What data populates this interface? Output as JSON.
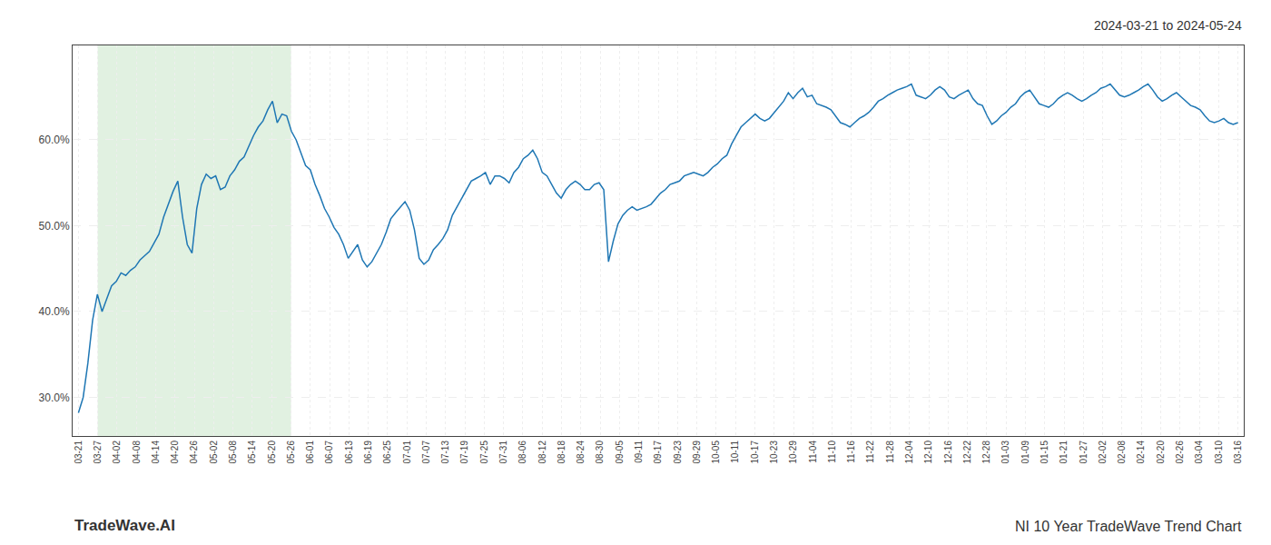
{
  "chart_data": {
    "type": "line",
    "title": "NI 10 Year TradeWave Trend Chart",
    "subtitle": "2024-03-21 to 2024-05-24",
    "annotations": [
      "TradeWave.AI"
    ],
    "color": "#1f77b4",
    "grid": true,
    "shading": {
      "from": 1,
      "to": 11,
      "color": "#c8e6c9"
    },
    "xlim": [
      -0.3,
      60.3
    ],
    "xticks": [
      {
        "value": 0,
        "label": "03-21"
      },
      {
        "value": 1,
        "label": "03-27"
      },
      {
        "value": 2,
        "label": "04-02"
      },
      {
        "value": 3,
        "label": "04-08"
      },
      {
        "value": 4,
        "label": "04-14"
      },
      {
        "value": 5,
        "label": "04-20"
      },
      {
        "value": 6,
        "label": "04-26"
      },
      {
        "value": 7,
        "label": "05-02"
      },
      {
        "value": 8,
        "label": "05-08"
      },
      {
        "value": 9,
        "label": "05-14"
      },
      {
        "value": 10,
        "label": "05-20"
      },
      {
        "value": 11,
        "label": "05-26"
      },
      {
        "value": 12,
        "label": "06-01"
      },
      {
        "value": 13,
        "label": "06-07"
      },
      {
        "value": 14,
        "label": "06-13"
      },
      {
        "value": 15,
        "label": "06-19"
      },
      {
        "value": 16,
        "label": "06-25"
      },
      {
        "value": 17,
        "label": "07-01"
      },
      {
        "value": 18,
        "label": "07-07"
      },
      {
        "value": 19,
        "label": "07-13"
      },
      {
        "value": 20,
        "label": "07-19"
      },
      {
        "value": 21,
        "label": "07-25"
      },
      {
        "value": 22,
        "label": "07-31"
      },
      {
        "value": 23,
        "label": "08-06"
      },
      {
        "value": 24,
        "label": "08-12"
      },
      {
        "value": 25,
        "label": "08-18"
      },
      {
        "value": 26,
        "label": "08-24"
      },
      {
        "value": 27,
        "label": "08-30"
      },
      {
        "value": 28,
        "label": "09-05"
      },
      {
        "value": 29,
        "label": "09-11"
      },
      {
        "value": 30,
        "label": "09-17"
      },
      {
        "value": 31,
        "label": "09-23"
      },
      {
        "value": 32,
        "label": "09-29"
      },
      {
        "value": 33,
        "label": "10-05"
      },
      {
        "value": 34,
        "label": "10-11"
      },
      {
        "value": 35,
        "label": "10-17"
      },
      {
        "value": 36,
        "label": "10-23"
      },
      {
        "value": 37,
        "label": "10-29"
      },
      {
        "value": 38,
        "label": "11-04"
      },
      {
        "value": 39,
        "label": "11-10"
      },
      {
        "value": 40,
        "label": "11-16"
      },
      {
        "value": 41,
        "label": "11-22"
      },
      {
        "value": 42,
        "label": "11-28"
      },
      {
        "value": 43,
        "label": "12-04"
      },
      {
        "value": 44,
        "label": "12-10"
      },
      {
        "value": 45,
        "label": "12-16"
      },
      {
        "value": 46,
        "label": "12-22"
      },
      {
        "value": 47,
        "label": "12-28"
      },
      {
        "value": 48,
        "label": "01-03"
      },
      {
        "value": 49,
        "label": "01-09"
      },
      {
        "value": 50,
        "label": "01-15"
      },
      {
        "value": 51,
        "label": "01-21"
      },
      {
        "value": 52,
        "label": "01-27"
      },
      {
        "value": 53,
        "label": "02-02"
      },
      {
        "value": 54,
        "label": "02-08"
      },
      {
        "value": 55,
        "label": "02-14"
      },
      {
        "value": 56,
        "label": "02-20"
      },
      {
        "value": 57,
        "label": "02-26"
      },
      {
        "value": 58,
        "label": "03-04"
      },
      {
        "value": 59,
        "label": "03-10"
      },
      {
        "value": 60,
        "label": "03-16"
      }
    ],
    "ylim": [
      0.255,
      0.71
    ],
    "yticks": [
      {
        "value": 0.3,
        "label": "30.0%"
      },
      {
        "value": 0.4,
        "label": "40.0%"
      },
      {
        "value": 0.5,
        "label": "50.0%"
      },
      {
        "value": 0.6,
        "label": "60.0%"
      }
    ],
    "x": [
      0,
      0.2449,
      0.4898,
      0.7347,
      0.9796,
      1.2245,
      1.4694,
      1.7143,
      1.9592,
      2.2041,
      2.449,
      2.6939,
      2.9388,
      3.1837,
      3.4286,
      3.6735,
      3.9184,
      4.1633,
      4.4082,
      4.6531,
      4.898,
      5.1429,
      5.3878,
      5.6327,
      5.8776,
      6.1224,
      6.3673,
      6.6122,
      6.8571,
      7.102,
      7.3469,
      7.5918,
      7.8367,
      8.0816,
      8.3265,
      8.5714,
      8.8163,
      9.0612,
      9.3061,
      9.551,
      9.7959,
      10.0408,
      10.2857,
      10.5306,
      10.7755,
      11.0204,
      11.2653,
      11.5102,
      11.7551,
      12,
      12.2449,
      12.4898,
      12.7347,
      12.9796,
      13.2245,
      13.4694,
      13.7143,
      13.9592,
      14.2041,
      14.449,
      14.6939,
      14.9388,
      15.1837,
      15.4286,
      15.6735,
      15.9184,
      16.1633,
      16.4082,
      16.6531,
      16.898,
      17.1429,
      17.3878,
      17.6327,
      17.8776,
      18.1224,
      18.3673,
      18.6122,
      18.8571,
      19.102,
      19.3469,
      19.5918,
      19.8367,
      20.0816,
      20.3265,
      20.5714,
      20.8163,
      21.0612,
      21.3061,
      21.551,
      21.7959,
      22.0408,
      22.2857,
      22.5306,
      22.7755,
      23.0204,
      23.2653,
      23.5102,
      23.7551,
      24,
      24.2449,
      24.4898,
      24.7347,
      24.9796,
      25.2245,
      25.4694,
      25.7143,
      25.9592,
      26.2041,
      26.449,
      26.6939,
      26.9388,
      27.1837,
      27.4286,
      27.6735,
      27.9184,
      28.1633,
      28.4082,
      28.6531,
      28.898,
      29.1429,
      29.3878,
      29.6327,
      29.8776,
      30.1224,
      30.3673,
      30.6122,
      30.8571,
      31.102,
      31.3469,
      31.5918,
      31.8367,
      32.0816,
      32.3265,
      32.5714,
      32.8163,
      33.0612,
      33.3061,
      33.551,
      33.7959,
      34.0408,
      34.2857,
      34.5306,
      34.7755,
      35.0204,
      35.2653,
      35.5102,
      35.7551,
      36,
      36.2449,
      36.4898,
      36.7347,
      36.9796,
      37.2245,
      37.4694,
      37.7143,
      37.9592,
      38.2041,
      38.449,
      38.6939,
      38.9388,
      39.1837,
      39.4286,
      39.6735,
      39.9184,
      40.1633,
      40.4082,
      40.6531,
      40.898,
      41.1429,
      41.3878,
      41.6327,
      41.8776,
      42.1224,
      42.3673,
      42.6122,
      42.8571,
      43.102,
      43.3469,
      43.5918,
      43.8367,
      44.0816,
      44.3265,
      44.5714,
      44.8163,
      45.0612,
      45.3061,
      45.551,
      45.7959,
      46.0408,
      46.2857,
      46.5306,
      46.7755,
      47.0204,
      47.2653,
      47.5102,
      47.7551,
      48,
      48.2449,
      48.4898,
      48.7347,
      48.9796,
      49.2245,
      49.4694,
      49.7143,
      49.9592,
      50.2041,
      50.449,
      50.6939,
      50.9388,
      51.1837,
      51.4286,
      51.6735,
      51.9184,
      52.1633,
      52.4082,
      52.6531,
      52.898,
      53.1429,
      53.3878,
      53.6327,
      53.8776,
      54.1224,
      54.3673,
      54.6122,
      54.8571,
      55.102,
      55.3469,
      55.5918,
      55.8367,
      56.0816,
      56.3265,
      56.5714,
      56.8163,
      57.0612,
      57.3061,
      57.551,
      57.7959,
      58.0408,
      58.2857,
      58.5306,
      58.7755,
      59.0204,
      59.2653,
      59.5102,
      59.7551,
      60
    ],
    "values": [
      0.282,
      0.3,
      0.34,
      0.39,
      0.42,
      0.4,
      0.415,
      0.43,
      0.435,
      0.445,
      0.442,
      0.448,
      0.452,
      0.46,
      0.465,
      0.47,
      0.48,
      0.49,
      0.51,
      0.525,
      0.54,
      0.552,
      0.51,
      0.478,
      0.468,
      0.52,
      0.548,
      0.56,
      0.555,
      0.558,
      0.542,
      0.545,
      0.558,
      0.565,
      0.575,
      0.58,
      0.592,
      0.605,
      0.615,
      0.622,
      0.635,
      0.645,
      0.62,
      0.63,
      0.628,
      0.61,
      0.6,
      0.585,
      0.57,
      0.565,
      0.548,
      0.535,
      0.52,
      0.51,
      0.498,
      0.49,
      0.478,
      0.462,
      0.47,
      0.478,
      0.46,
      0.452,
      0.458,
      0.468,
      0.478,
      0.492,
      0.508,
      0.515,
      0.522,
      0.528,
      0.518,
      0.495,
      0.462,
      0.455,
      0.46,
      0.472,
      0.478,
      0.485,
      0.495,
      0.512,
      0.522,
      0.532,
      0.542,
      0.552,
      0.555,
      0.558,
      0.562,
      0.548,
      0.558,
      0.558,
      0.555,
      0.55,
      0.562,
      0.568,
      0.578,
      0.582,
      0.588,
      0.578,
      0.562,
      0.558,
      0.548,
      0.538,
      0.532,
      0.542,
      0.548,
      0.552,
      0.548,
      0.542,
      0.542,
      0.548,
      0.55,
      0.542,
      0.458,
      0.482,
      0.502,
      0.512,
      0.518,
      0.522,
      0.518,
      0.52,
      0.522,
      0.525,
      0.532,
      0.538,
      0.542,
      0.548,
      0.55,
      0.552,
      0.558,
      0.56,
      0.562,
      0.56,
      0.558,
      0.562,
      0.568,
      0.572,
      0.578,
      0.582,
      0.595,
      0.605,
      0.615,
      0.62,
      0.625,
      0.63,
      0.625,
      0.622,
      0.625,
      0.632,
      0.638,
      0.645,
      0.655,
      0.648,
      0.655,
      0.66,
      0.65,
      0.652,
      0.642,
      0.64,
      0.638,
      0.635,
      0.628,
      0.62,
      0.618,
      0.615,
      0.62,
      0.625,
      0.628,
      0.632,
      0.638,
      0.645,
      0.648,
      0.652,
      0.655,
      0.658,
      0.66,
      0.662,
      0.665,
      0.652,
      0.65,
      0.648,
      0.652,
      0.658,
      0.662,
      0.658,
      0.65,
      0.648,
      0.652,
      0.655,
      0.658,
      0.648,
      0.642,
      0.64,
      0.628,
      0.618,
      0.622,
      0.628,
      0.632,
      0.638,
      0.642,
      0.65,
      0.655,
      0.658,
      0.65,
      0.642,
      0.64,
      0.638,
      0.642,
      0.648,
      0.652,
      0.655,
      0.652,
      0.648,
      0.645,
      0.648,
      0.652,
      0.655,
      0.66,
      0.662,
      0.665,
      0.658,
      0.652,
      0.65,
      0.652,
      0.655,
      0.658,
      0.662,
      0.665,
      0.658,
      0.65,
      0.645,
      0.648,
      0.652,
      0.655,
      0.65,
      0.645,
      0.64,
      0.638,
      0.635,
      0.628,
      0.622,
      0.62,
      0.622,
      0.625,
      0.62,
      0.618,
      0.62
    ]
  }
}
